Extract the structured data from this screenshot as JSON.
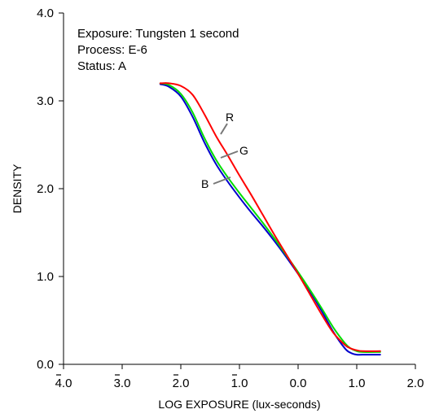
{
  "chart_data": {
    "type": "line",
    "title": "",
    "xlabel": "LOG EXPOSURE (lux-seconds)",
    "ylabel": "DENSITY",
    "xlim": [
      -4,
      2
    ],
    "ylim": [
      0,
      4
    ],
    "x_ticks": [
      -4,
      -3,
      -2,
      -1,
      0,
      1,
      2
    ],
    "x_tick_labels": [
      "4.0",
      "3.0",
      "2.0",
      "1.0",
      "0.0",
      "1.0",
      "2.0"
    ],
    "x_tick_bars": [
      true,
      true,
      true,
      true,
      false,
      false,
      false
    ],
    "y_ticks": [
      0,
      1,
      2,
      3,
      4
    ],
    "y_tick_labels": [
      "0.0",
      "1.0",
      "2.0",
      "3.0",
      "4.0"
    ],
    "grid": false,
    "annotations": [
      "Exposure:  Tungsten 1 second",
      "Process:  E-6",
      "Status:  A"
    ],
    "series": [
      {
        "name": "R",
        "color": "#ff0000",
        "x": [
          -2.35,
          -2.2,
          -2.0,
          -1.8,
          -1.6,
          -1.4,
          -1.2,
          -1.0,
          -0.8,
          -0.6,
          -0.4,
          -0.2,
          0.0,
          0.2,
          0.4,
          0.6,
          0.8,
          0.9,
          1.0,
          1.1,
          1.4
        ],
        "y": [
          3.2,
          3.2,
          3.17,
          3.07,
          2.85,
          2.6,
          2.38,
          2.15,
          1.93,
          1.7,
          1.47,
          1.25,
          1.03,
          0.8,
          0.57,
          0.36,
          0.22,
          0.18,
          0.16,
          0.15,
          0.15
        ]
      },
      {
        "name": "G",
        "color": "#00dd00",
        "x": [
          -2.35,
          -2.2,
          -2.0,
          -1.8,
          -1.6,
          -1.4,
          -1.2,
          -1.0,
          -0.8,
          -0.6,
          -0.4,
          -0.2,
          0.0,
          0.2,
          0.4,
          0.6,
          0.8,
          0.9,
          1.0,
          1.1,
          1.4
        ],
        "y": [
          3.2,
          3.18,
          3.08,
          2.87,
          2.58,
          2.33,
          2.13,
          1.95,
          1.78,
          1.61,
          1.43,
          1.24,
          1.05,
          0.85,
          0.64,
          0.42,
          0.24,
          0.18,
          0.15,
          0.14,
          0.14
        ]
      },
      {
        "name": "B",
        "color": "#0000cc",
        "x": [
          -2.35,
          -2.2,
          -2.0,
          -1.8,
          -1.6,
          -1.4,
          -1.2,
          -1.0,
          -0.8,
          -0.6,
          -0.4,
          -0.2,
          0.0,
          0.2,
          0.4,
          0.6,
          0.8,
          0.9,
          1.0,
          1.1,
          1.4
        ],
        "y": [
          3.19,
          3.16,
          3.05,
          2.82,
          2.53,
          2.28,
          2.08,
          1.9,
          1.73,
          1.57,
          1.4,
          1.22,
          1.03,
          0.83,
          0.61,
          0.37,
          0.18,
          0.13,
          0.11,
          0.11,
          0.11
        ]
      }
    ]
  }
}
